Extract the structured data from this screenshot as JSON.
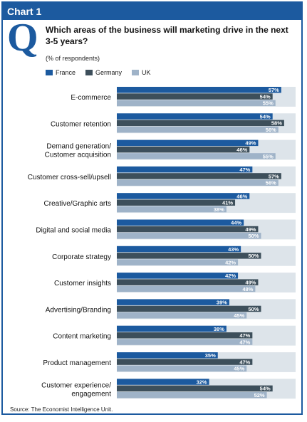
{
  "header": {
    "title": "Chart 1"
  },
  "icon": {
    "q_letter": "Q"
  },
  "question": "Which areas of the business will marketing drive in the next 3-5 years?",
  "subtitle": "(% of respondents)",
  "source": "Source: The Economist Intelligence Unit.",
  "colors": {
    "brand": "#1c5a9f",
    "France": "#1c5a9f",
    "Germany": "#3d4f5b",
    "UK": "#9fb3c8",
    "row_shade": "#dde4ea"
  },
  "chart_data": {
    "type": "bar",
    "orientation": "horizontal",
    "categories": [
      "E-commerce",
      "Customer retention",
      "Demand generation/\nCustomer acquisition",
      "Customer cross-sell/upsell",
      "Creative/Graphic arts",
      "Digital and social media",
      "Corporate strategy",
      "Customer insights",
      "Advertising/Branding",
      "Content marketing",
      "Product management",
      "Customer experience/\nengagement"
    ],
    "series": [
      {
        "name": "France",
        "values": [
          57,
          54,
          49,
          47,
          46,
          44,
          43,
          42,
          39,
          38,
          35,
          32
        ]
      },
      {
        "name": "Germany",
        "values": [
          54,
          58,
          46,
          57,
          41,
          49,
          50,
          49,
          50,
          47,
          47,
          54
        ]
      },
      {
        "name": "UK",
        "values": [
          55,
          56,
          55,
          56,
          38,
          50,
          42,
          48,
          45,
          47,
          45,
          52
        ]
      }
    ],
    "value_suffix": "%",
    "xlim": [
      0,
      60
    ],
    "legend_position": "top-left"
  }
}
